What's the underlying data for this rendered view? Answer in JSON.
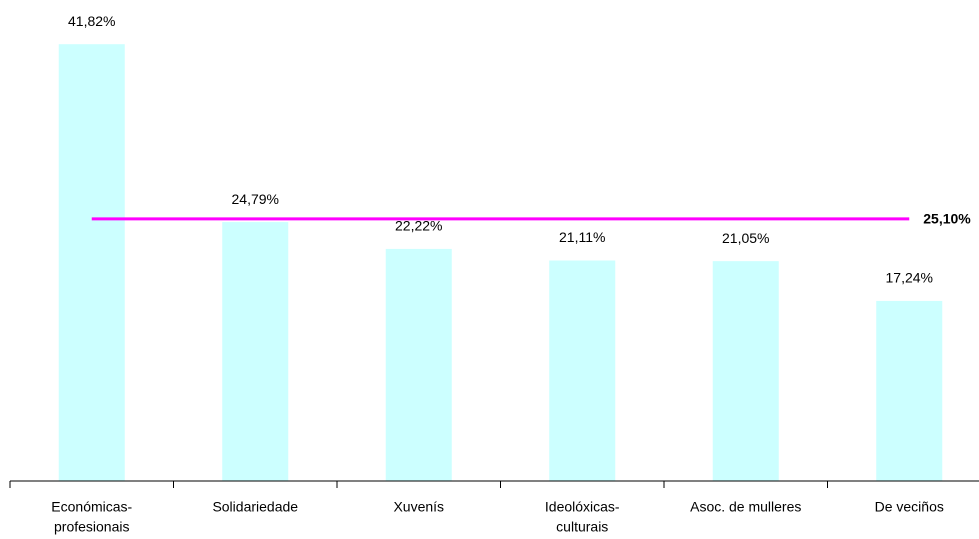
{
  "chart_data": {
    "type": "bar",
    "categories": [
      [
        "Económicas-",
        "profesionais"
      ],
      [
        "Solidariedade"
      ],
      [
        "Xuvenís"
      ],
      [
        "Ideolóxicas-",
        "culturais"
      ],
      [
        "Asoc. de mulleres"
      ],
      [
        "De veciños"
      ]
    ],
    "values": [
      41.82,
      24.79,
      22.22,
      21.11,
      21.05,
      17.24
    ],
    "value_labels": [
      "41,82%",
      "24,79%",
      "22,22%",
      "21,11%",
      "21,05%",
      "17,24%"
    ],
    "color": "#ccffff",
    "reference_line": {
      "value": 25.1,
      "label": "25,10%",
      "color": "#ff00ff"
    },
    "ylim": [
      0,
      45
    ]
  }
}
